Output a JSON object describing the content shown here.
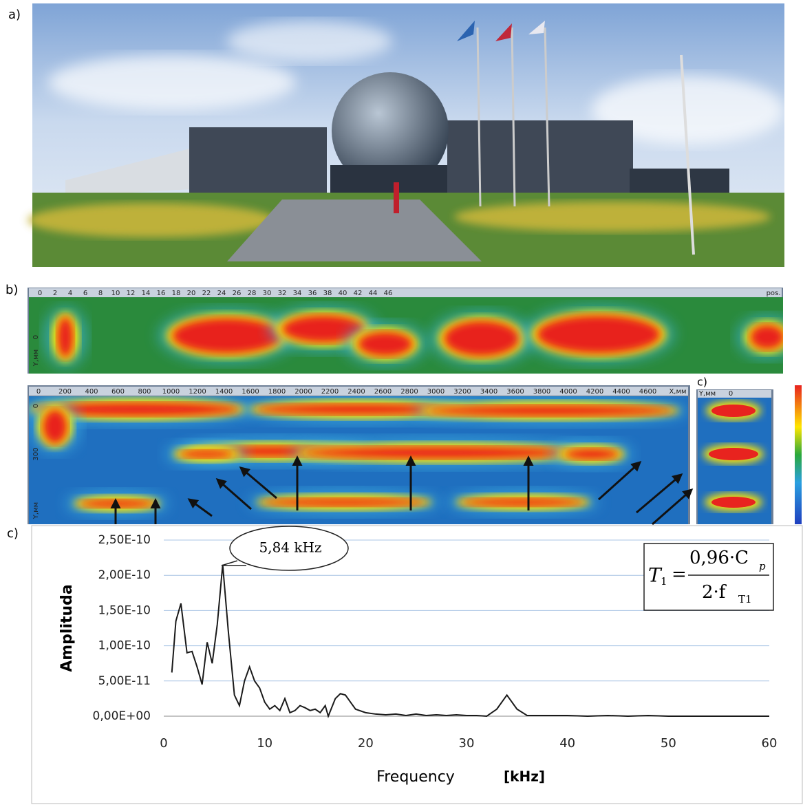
{
  "panel_labels": {
    "a": "a)",
    "b": "b)",
    "c_scan": "c)",
    "c": "c)"
  },
  "scan_top": {
    "xticks": [
      "0",
      "2",
      "4",
      "6",
      "8",
      "10",
      "12",
      "14",
      "16",
      "18",
      "20",
      "22",
      "24",
      "26",
      "28",
      "30",
      "32",
      "34",
      "36",
      "38",
      "40",
      "42",
      "44",
      "46"
    ],
    "x_unit": "pos.",
    "y_tick": "0",
    "y_unit": "Y,мм"
  },
  "scan_bottom": {
    "xticks": [
      "0",
      "200",
      "400",
      "600",
      "800",
      "1000",
      "1200",
      "1400",
      "1600",
      "1800",
      "2000",
      "2200",
      "2400",
      "2600",
      "2800",
      "3000",
      "3200",
      "3400",
      "3600",
      "3800",
      "4000",
      "4200",
      "4400",
      "4600"
    ],
    "x_unit": "X,мм",
    "y_ticks": [
      "0",
      "300"
    ],
    "y_unit": "Y,мм"
  },
  "scan_side": {
    "y_unit": "Y,мм",
    "x_tick": "0"
  },
  "chart_data": {
    "type": "line",
    "x_label": "Frequency",
    "x_unit_label": "[kHz]",
    "y_label": "Amplituda",
    "annotation": "5,84 kHz",
    "formula": {
      "lhs": "T",
      "lhs_sub": "1",
      "eq": "=",
      "num": "0,96·C",
      "num_sub": "p",
      "den": "2·f",
      "den_sub": "T1"
    },
    "xlim": [
      0,
      60
    ],
    "ylim": [
      0,
      2.5e-10
    ],
    "xticks": [
      0,
      10,
      20,
      30,
      40,
      50,
      60
    ],
    "yticks": [
      {
        "value": 0,
        "label": "0,00E+00"
      },
      {
        "value": 5e-11,
        "label": "5,00E-11"
      },
      {
        "value": 1e-10,
        "label": "1,00E-10"
      },
      {
        "value": 1.5e-10,
        "label": "1,50E-10"
      },
      {
        "value": 2e-10,
        "label": "2,00E-10"
      },
      {
        "value": 2.5e-10,
        "label": "2,50E-10"
      }
    ],
    "grid": true,
    "series": [
      {
        "color": "#1a1a1a",
        "x": [
          0.8,
          1.2,
          1.7,
          2.3,
          2.8,
          3.3,
          3.8,
          4.3,
          4.8,
          5.3,
          5.84,
          6.4,
          7,
          7.5,
          8,
          8.5,
          9,
          9.5,
          10,
          10.5,
          11,
          11.5,
          12,
          12.5,
          13,
          13.5,
          14,
          14.5,
          15,
          15.5,
          16,
          16.3,
          17,
          17.5,
          18,
          18.5,
          19,
          20,
          21,
          22,
          23,
          24,
          25,
          26,
          27,
          28,
          29,
          30,
          31,
          32,
          33,
          34,
          35,
          36,
          38,
          40,
          42,
          44,
          46,
          48,
          50,
          52,
          54,
          56,
          58,
          60
        ],
        "values": [
          6.2e-11,
          1.35e-10,
          1.6e-10,
          9e-11,
          9.2e-11,
          7e-11,
          4.5e-11,
          1.05e-10,
          7.5e-11,
          1.3e-10,
          2.15e-10,
          1.2e-10,
          3e-11,
          1.5e-11,
          5e-11,
          7e-11,
          5e-11,
          4e-11,
          2e-11,
          1e-11,
          1.5e-11,
          8e-12,
          2.5e-11,
          5e-12,
          8e-12,
          1.5e-11,
          1.2e-11,
          8e-12,
          1e-11,
          5e-12,
          1.5e-11,
          0,
          2.5e-11,
          3.2e-11,
          3e-11,
          2e-11,
          1e-11,
          5e-12,
          3e-12,
          2e-12,
          3e-12,
          1e-12,
          3e-12,
          1e-12,
          2e-12,
          1e-12,
          2e-12,
          1e-12,
          1e-12,
          0,
          1e-11,
          3e-11,
          1e-11,
          1e-12,
          1e-12,
          1e-12,
          0,
          1e-12,
          0,
          1e-12,
          0,
          0,
          0,
          0,
          0,
          0
        ]
      }
    ]
  }
}
